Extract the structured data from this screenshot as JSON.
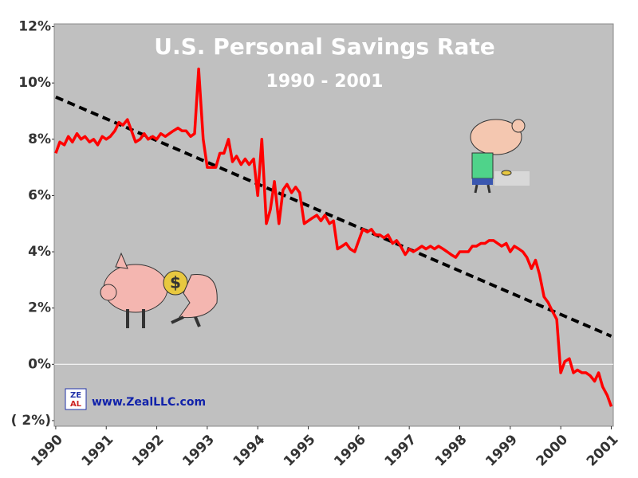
{
  "chart_data": {
    "type": "line",
    "title": "U.S. Personal Savings Rate",
    "subtitle": "1990 - 2001",
    "annotation": "www.ZealLLC.com",
    "color": "#ff0000",
    "x": [
      1990.0,
      1990.08,
      1990.17,
      1990.25,
      1990.33,
      1990.42,
      1990.5,
      1990.58,
      1990.67,
      1990.75,
      1990.83,
      1990.92,
      1991.0,
      1991.08,
      1991.17,
      1991.25,
      1991.33,
      1991.42,
      1991.5,
      1991.58,
      1991.67,
      1991.75,
      1991.83,
      1991.92,
      1992.0,
      1992.08,
      1992.17,
      1992.25,
      1992.33,
      1992.42,
      1992.5,
      1992.58,
      1992.67,
      1992.75,
      1992.83,
      1992.92,
      1993.0,
      1993.08,
      1993.17,
      1993.25,
      1993.33,
      1993.42,
      1993.5,
      1993.58,
      1993.67,
      1993.75,
      1993.83,
      1993.92,
      1994.0,
      1994.08,
      1994.17,
      1994.25,
      1994.33,
      1994.42,
      1994.5,
      1994.58,
      1994.67,
      1994.75,
      1994.83,
      1994.92,
      1995.0,
      1995.08,
      1995.17,
      1995.25,
      1995.33,
      1995.42,
      1995.5,
      1995.58,
      1995.67,
      1995.75,
      1995.83,
      1995.92,
      1996.0,
      1996.08,
      1996.17,
      1996.25,
      1996.33,
      1996.42,
      1996.5,
      1996.58,
      1996.67,
      1996.75,
      1996.83,
      1996.92,
      1997.0,
      1997.08,
      1997.17,
      1997.25,
      1997.33,
      1997.42,
      1997.5,
      1997.58,
      1997.67,
      1997.75,
      1997.83,
      1997.92,
      1998.0,
      1998.08,
      1998.17,
      1998.25,
      1998.33,
      1998.42,
      1998.5,
      1998.58,
      1998.67,
      1998.75,
      1998.83,
      1998.92,
      1999.0,
      1999.08,
      1999.17,
      1999.25,
      1999.33,
      1999.42,
      1999.5,
      1999.58,
      1999.67,
      1999.75,
      1999.83,
      1999.92,
      2000.0,
      2000.08,
      2000.17,
      2000.25,
      2000.33,
      2000.42,
      2000.5,
      2000.58,
      2000.67,
      2000.75,
      2000.83,
      2000.92,
      2001.0
    ],
    "values": [
      7.5,
      7.9,
      7.8,
      8.1,
      7.9,
      8.2,
      8.0,
      8.1,
      7.9,
      8.0,
      7.8,
      8.1,
      8.0,
      8.1,
      8.3,
      8.6,
      8.5,
      8.7,
      8.3,
      7.9,
      8.0,
      8.2,
      8.0,
      8.1,
      8.0,
      8.2,
      8.1,
      8.2,
      8.3,
      8.4,
      8.3,
      8.3,
      8.1,
      8.2,
      10.5,
      8.0,
      7.0,
      7.0,
      7.0,
      7.5,
      7.5,
      8.0,
      7.2,
      7.4,
      7.1,
      7.3,
      7.1,
      7.3,
      6.0,
      8.0,
      5.0,
      5.5,
      6.5,
      5.0,
      6.2,
      6.4,
      6.1,
      6.3,
      6.1,
      5.0,
      5.1,
      5.2,
      5.3,
      5.1,
      5.3,
      5.0,
      5.1,
      4.1,
      4.2,
      4.3,
      4.1,
      4.0,
      4.4,
      4.8,
      4.7,
      4.8,
      4.6,
      4.6,
      4.5,
      4.6,
      4.3,
      4.4,
      4.2,
      3.9,
      4.1,
      4.0,
      4.1,
      4.2,
      4.1,
      4.2,
      4.1,
      4.2,
      4.1,
      4.0,
      3.9,
      3.8,
      4.0,
      4.0,
      4.0,
      4.2,
      4.2,
      4.3,
      4.3,
      4.4,
      4.4,
      4.3,
      4.2,
      4.3,
      4.0,
      4.2,
      4.1,
      4.0,
      3.8,
      3.4,
      3.7,
      3.2,
      2.4,
      2.2,
      1.9,
      1.6,
      -0.3,
      0.1,
      0.2,
      -0.3,
      -0.2,
      -0.3,
      -0.3,
      -0.4,
      -0.6,
      -0.3,
      -0.8,
      -1.1,
      -1.5
    ],
    "trend": {
      "x": [
        1990,
        2001
      ],
      "values": [
        9.5,
        1.0
      ],
      "color": "#000000"
    },
    "xlim": [
      1989.97,
      2001.04
    ],
    "xticks": [
      1990,
      1991,
      1992,
      1993,
      1994,
      1995,
      1996,
      1997,
      1998,
      1999,
      2000,
      2001
    ],
    "ylim": [
      -2.2,
      12.1
    ],
    "yticks": [
      {
        "value": -2,
        "label": "( 2%)"
      },
      {
        "value": 0,
        "label": "0%"
      },
      {
        "value": 2,
        "label": "2%"
      },
      {
        "value": 4,
        "label": "4%"
      },
      {
        "value": 6,
        "label": "6%"
      },
      {
        "value": 8,
        "label": "8%"
      },
      {
        "value": 10,
        "label": "10%"
      },
      {
        "value": 12,
        "label": "12%"
      }
    ],
    "zero_line": true
  }
}
